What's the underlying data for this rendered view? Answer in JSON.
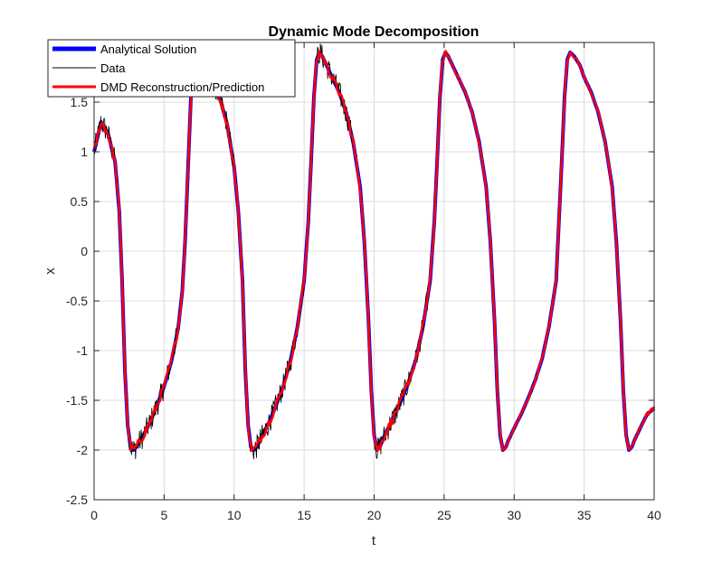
{
  "chart_data": {
    "type": "line",
    "title": "Dynamic Mode Decomposition",
    "xlabel": "t",
    "ylabel": "x",
    "xlim": [
      0,
      40
    ],
    "ylim": [
      -2.5,
      2.1
    ],
    "x_ticks": [
      0,
      5,
      10,
      15,
      20,
      25,
      30,
      35,
      40
    ],
    "y_ticks": [
      -2.5,
      -2,
      -1.5,
      -1,
      -0.5,
      0,
      0.5,
      1,
      1.5
    ],
    "grid": true,
    "legend_position": "top-left",
    "legend": [
      {
        "name": "Analytical Solution",
        "color": "#0000ff"
      },
      {
        "name": "Data",
        "color": "#000000"
      },
      {
        "name": "DMD Reconstruction/Prediction",
        "color": "#ff0000"
      }
    ],
    "series": [
      {
        "name": "Analytical Solution",
        "color": "#0000ff",
        "x": [
          0,
          0.5,
          1.0,
          1.5,
          1.8,
          2.0,
          2.2,
          2.4,
          2.6,
          2.8,
          3.0,
          3.5,
          4.0,
          4.5,
          5.0,
          5.5,
          6.0,
          6.3,
          6.5,
          6.7,
          6.9,
          7.1,
          7.3,
          7.5,
          7.8,
          8.0,
          8.5,
          9.0,
          9.5,
          10.0,
          10.3,
          10.6,
          10.8,
          11.0,
          11.2,
          11.4,
          11.6,
          12.0,
          12.5,
          13.0,
          13.5,
          14.0,
          14.5,
          15.0,
          15.3,
          15.5,
          15.7,
          15.9,
          16.1,
          16.3,
          16.6,
          17.0,
          17.5,
          18.0,
          18.5,
          19.0,
          19.3,
          19.6,
          19.8,
          20.0,
          20.2,
          20.4,
          20.6,
          21.0,
          21.5,
          22.0,
          22.5,
          23.0,
          23.5,
          24.0,
          24.3,
          24.5,
          24.7,
          24.9,
          25.1,
          25.3,
          25.6,
          26.0,
          26.5,
          27.0,
          27.5,
          28.0,
          28.3,
          28.6,
          28.8,
          29.0,
          29.2,
          29.4,
          29.6,
          30.0,
          30.5,
          31.0,
          31.5,
          32.0,
          32.5,
          33.0,
          33.2,
          33.4,
          33.6,
          33.8,
          34.0,
          34.3,
          34.7,
          35.0,
          35.5,
          36.0,
          36.5,
          37.0,
          37.3,
          37.6,
          37.8,
          38.0,
          38.2,
          38.4,
          38.6,
          39.0,
          39.5,
          40.0
        ],
        "y": [
          1.0,
          1.3,
          1.18,
          0.9,
          0.4,
          -0.3,
          -1.2,
          -1.75,
          -1.97,
          -2.0,
          -1.97,
          -1.86,
          -1.72,
          -1.55,
          -1.36,
          -1.12,
          -0.78,
          -0.4,
          0.1,
          0.8,
          1.5,
          1.9,
          2.0,
          1.96,
          1.88,
          1.83,
          1.7,
          1.53,
          1.28,
          0.85,
          0.4,
          -0.3,
          -1.2,
          -1.75,
          -1.97,
          -2.0,
          -1.97,
          -1.86,
          -1.72,
          -1.55,
          -1.36,
          -1.12,
          -0.78,
          -0.3,
          0.3,
          0.9,
          1.55,
          1.93,
          2.0,
          1.96,
          1.87,
          1.75,
          1.6,
          1.4,
          1.1,
          0.65,
          0.1,
          -0.7,
          -1.4,
          -1.85,
          -2.0,
          -1.97,
          -1.9,
          -1.78,
          -1.64,
          -1.48,
          -1.3,
          -1.08,
          -0.75,
          -0.3,
          0.3,
          0.9,
          1.55,
          1.93,
          2.0,
          1.96,
          1.87,
          1.75,
          1.6,
          1.4,
          1.1,
          0.65,
          0.1,
          -0.7,
          -1.4,
          -1.85,
          -2.0,
          -1.97,
          -1.9,
          -1.78,
          -1.64,
          -1.48,
          -1.3,
          -1.08,
          -0.75,
          -0.3,
          0.3,
          0.9,
          1.55,
          1.93,
          2.0,
          1.96,
          1.87,
          1.75,
          1.6,
          1.4,
          1.1,
          0.65,
          0.1,
          -0.7,
          -1.4,
          -1.85,
          -2.0,
          -1.97,
          -1.9,
          -1.78,
          -1.64,
          -1.58
        ]
      },
      {
        "name": "Data",
        "color": "#000000",
        "noisy_until": 25,
        "noise_amplitude": 0.12
      },
      {
        "name": "DMD Reconstruction/Prediction",
        "color": "#ff0000",
        "noisy_until": 25,
        "noise_amplitude": 0.04
      }
    ]
  }
}
